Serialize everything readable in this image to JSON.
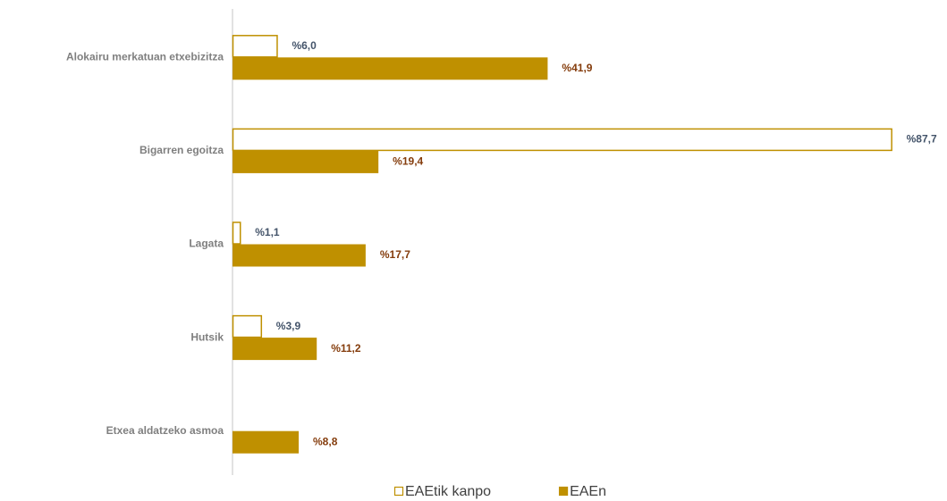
{
  "chart_data": {
    "type": "bar",
    "orientation": "horizontal",
    "categories": [
      "Alokairu merkatuan etxebizitza",
      "Bigarren egoitza",
      "Lagata",
      "Hutsik",
      "Etxea aldatzeko asmoa"
    ],
    "series": [
      {
        "name": "EAEtik kanpo",
        "color": "#bf9000",
        "outline": true,
        "label_color": "#44546a",
        "values": [
          6.0,
          87.7,
          1.1,
          3.9,
          null
        ],
        "value_labels": [
          "%6,0",
          "%87,7",
          "%1,1",
          "%3,9",
          null
        ]
      },
      {
        "name": "EAEn",
        "color": "#bf9000",
        "outline": false,
        "label_color": "#843c0c",
        "values": [
          41.9,
          19.4,
          17.7,
          11.2,
          8.8
        ],
        "value_labels": [
          "%41,9",
          "%19,4",
          "%17,7",
          "%11,2",
          "%8,8"
        ]
      }
    ],
    "xlim": [
      0,
      90
    ],
    "legend": "bottom"
  }
}
